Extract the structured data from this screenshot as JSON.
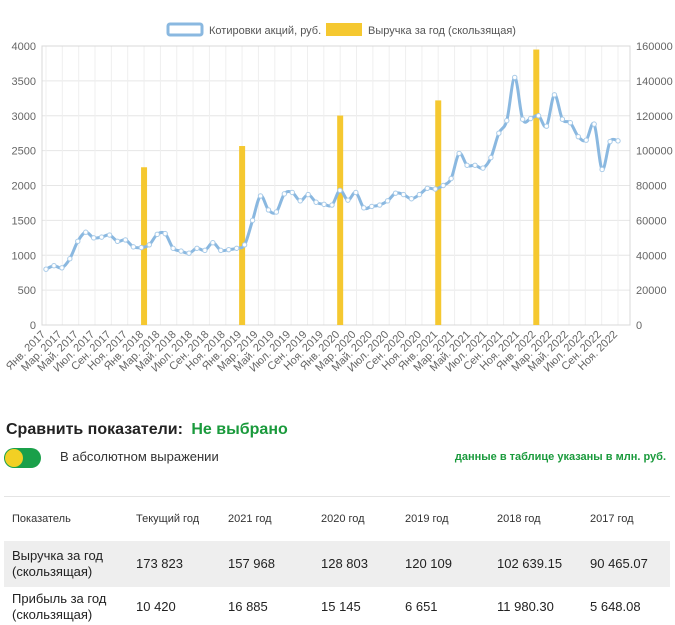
{
  "chart_data": {
    "type": "bar+line",
    "legend": [
      {
        "name": "Котировки акций, руб.",
        "color": "#8ab8e0",
        "kind": "line"
      },
      {
        "name": "Выручка за год (скользящая)",
        "color": "#f5c830",
        "kind": "bar"
      }
    ],
    "legend_position": "top-center",
    "grid": true,
    "y_left": {
      "min": 0,
      "max": 4000,
      "ticks": [
        "0",
        "500",
        "1000",
        "1500",
        "2000",
        "2500",
        "3000",
        "3500",
        "4000"
      ]
    },
    "y_right": {
      "min": 0,
      "max": 160000,
      "ticks": [
        "0",
        "20000",
        "40000",
        "60000",
        "80000",
        "100000",
        "120000",
        "140000",
        "160000"
      ]
    },
    "x_labels": [
      "Янв. 2017",
      "Мар. 2017",
      "Май. 2017",
      "Июл. 2017",
      "Сен. 2017",
      "Ноя. 2017",
      "Янв. 2018",
      "Мар. 2018",
      "Май. 2018",
      "Июл. 2018",
      "Сен. 2018",
      "Ноя. 2018",
      "Янв. 2019",
      "Мар. 2019",
      "Май. 2019",
      "Июл. 2019",
      "Сен. 2019",
      "Ноя. 2019",
      "Янв. 2020",
      "Мар. 2020",
      "Май. 2020",
      "Июл. 2020",
      "Сен. 2020",
      "Ноя. 2020",
      "Янв. 2021",
      "Мар. 2021",
      "Май. 2021",
      "Июл. 2021",
      "Сен. 2021",
      "Ноя. 2021",
      "Янв. 2022",
      "Мар. 2022",
      "Май. 2022",
      "Июл. 2022",
      "Сен. 2022",
      "Ноя. 2022"
    ],
    "bars": [
      {
        "month_index": 12,
        "value": 90465
      },
      {
        "month_index": 24,
        "value": 102639
      },
      {
        "month_index": 36,
        "value": 120109
      },
      {
        "month_index": 48,
        "value": 128803
      },
      {
        "month_index": 60,
        "value": 157968
      }
    ],
    "stock_series": {
      "name": "Котировки акций, руб.",
      "points": [
        [
          0,
          800
        ],
        [
          2,
          850
        ],
        [
          4,
          820
        ],
        [
          6,
          950
        ],
        [
          8,
          1200
        ],
        [
          10,
          1330
        ],
        [
          12,
          1250
        ],
        [
          14,
          1260
        ],
        [
          16,
          1290
        ],
        [
          18,
          1200
        ],
        [
          20,
          1220
        ],
        [
          22,
          1120
        ],
        [
          24,
          1110
        ],
        [
          26,
          1150
        ],
        [
          28,
          1300
        ],
        [
          30,
          1310
        ],
        [
          32,
          1100
        ],
        [
          34,
          1060
        ],
        [
          36,
          1030
        ],
        [
          38,
          1100
        ],
        [
          40,
          1070
        ],
        [
          42,
          1180
        ],
        [
          44,
          1070
        ],
        [
          46,
          1080
        ],
        [
          48,
          1100
        ],
        [
          50,
          1150
        ],
        [
          52,
          1500
        ],
        [
          54,
          1850
        ],
        [
          56,
          1650
        ],
        [
          58,
          1620
        ],
        [
          60,
          1880
        ],
        [
          62,
          1900
        ],
        [
          64,
          1780
        ],
        [
          66,
          1870
        ],
        [
          68,
          1760
        ],
        [
          70,
          1730
        ],
        [
          72,
          1720
        ],
        [
          74,
          1930
        ],
        [
          76,
          1790
        ],
        [
          78,
          1900
        ],
        [
          80,
          1680
        ],
        [
          82,
          1700
        ],
        [
          84,
          1720
        ],
        [
          86,
          1780
        ],
        [
          88,
          1890
        ],
        [
          90,
          1870
        ],
        [
          92,
          1810
        ],
        [
          94,
          1870
        ],
        [
          96,
          1960
        ],
        [
          98,
          1950
        ],
        [
          100,
          2000
        ],
        [
          102,
          2100
        ],
        [
          104,
          2460
        ],
        [
          106,
          2290
        ],
        [
          108,
          2290
        ],
        [
          110,
          2250
        ],
        [
          112,
          2400
        ],
        [
          114,
          2750
        ],
        [
          116,
          2930
        ],
        [
          118,
          3550
        ],
        [
          120,
          2950
        ],
        [
          122,
          2960
        ],
        [
          124,
          3000
        ],
        [
          126,
          2850
        ],
        [
          128,
          3300
        ],
        [
          130,
          2950
        ],
        [
          132,
          2900
        ],
        [
          134,
          2700
        ],
        [
          136,
          2650
        ],
        [
          138,
          2880
        ],
        [
          140,
          2230
        ],
        [
          142,
          2630
        ],
        [
          144,
          2640
        ]
      ],
      "x_max": 144
    }
  },
  "compare": {
    "label": "Сравнить показатели:",
    "status": "Не выбрано"
  },
  "toggle_label": "В абсолютном выражении",
  "units_note": "данные в таблице указаны в млн. руб.",
  "table": {
    "headers": [
      "Показатель",
      "Текущий год",
      "2021 год",
      "2020 год",
      "2019 год",
      "2018 год",
      "2017 год"
    ],
    "rows": [
      {
        "label": "Выручка за год (скользящая)",
        "values": [
          "173 823",
          "157 968",
          "128 803",
          "120 109",
          "102 639.15",
          "90 465.07"
        ]
      },
      {
        "label": "Прибыль за год (скользящая)",
        "values": [
          "10 420",
          "16 885",
          "15 145",
          "6 651",
          "11 980.30",
          "5 648.08"
        ]
      }
    ]
  }
}
